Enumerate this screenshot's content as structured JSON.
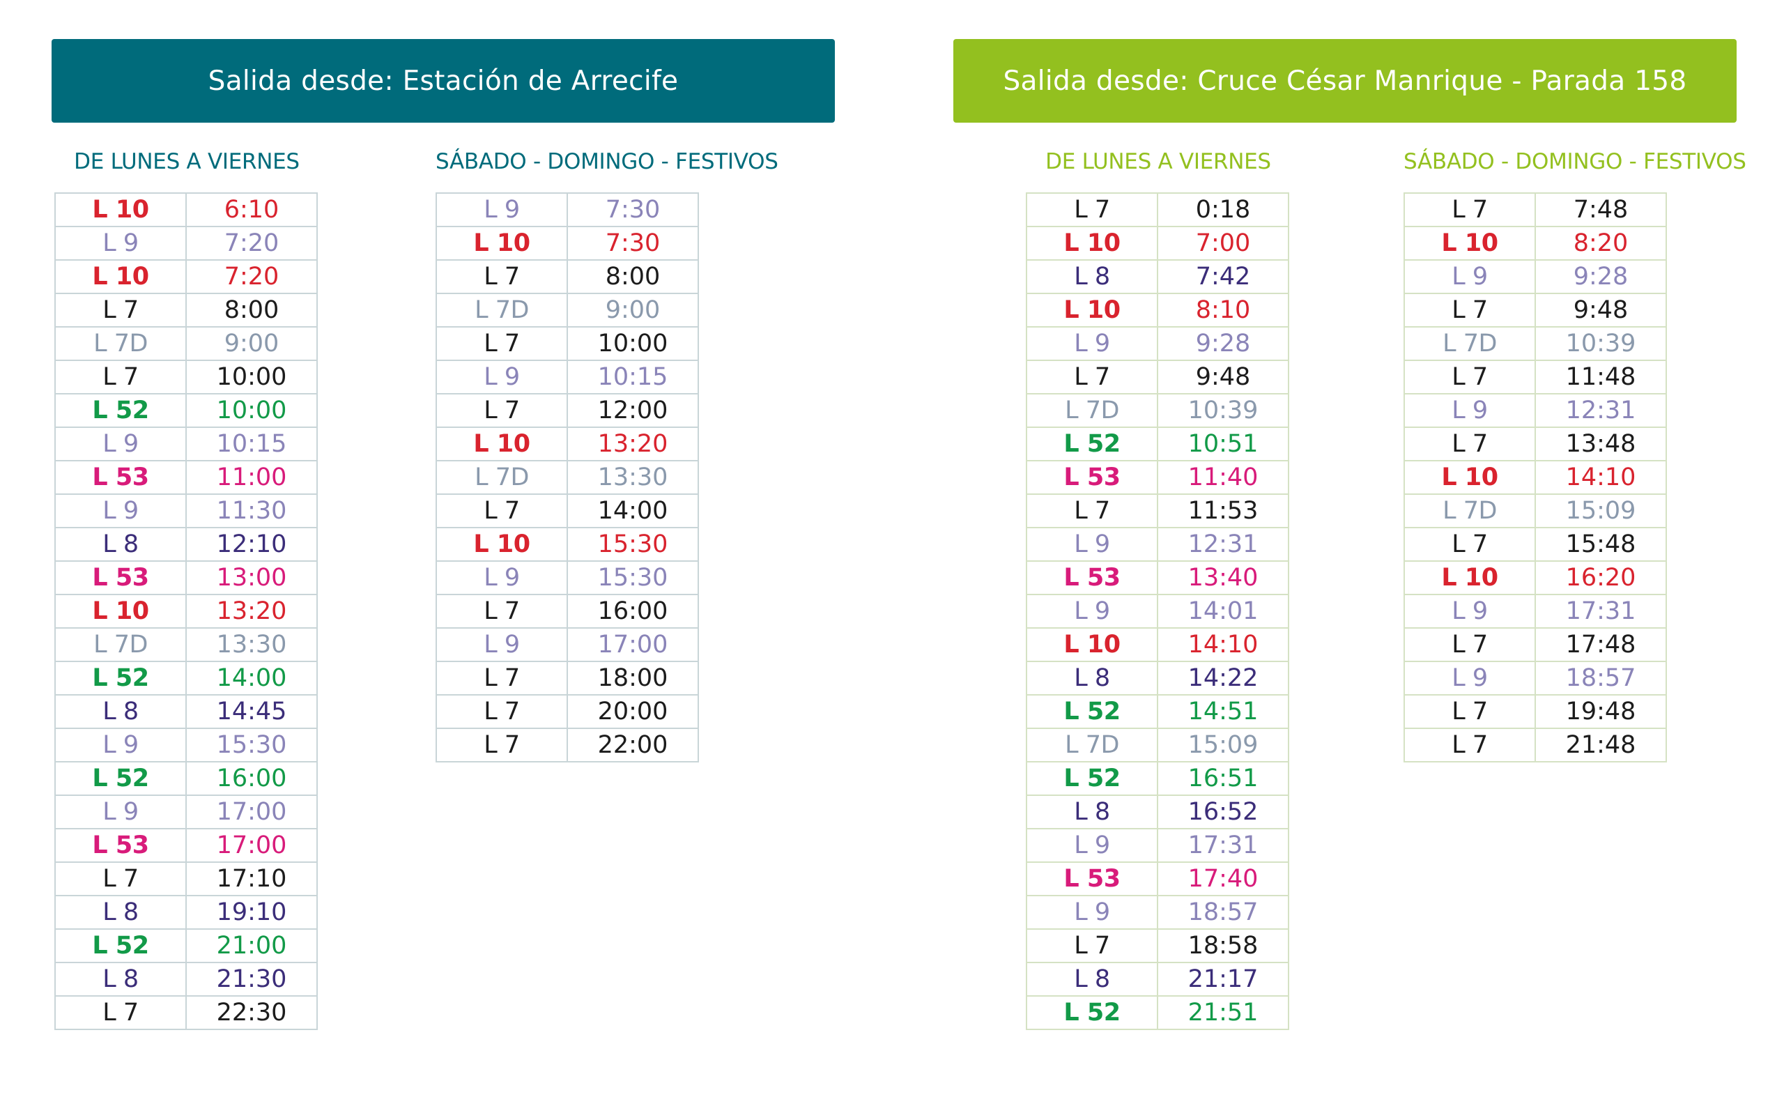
{
  "line_colors": {
    "L 10": "#d9232e",
    "L 9": "#8a84b8",
    "L 7": "#1c1c1c",
    "L 7D": "#8a99ac",
    "L 52": "#129a48",
    "L 53": "#d81b7a",
    "L 8": "#3b2d79"
  },
  "bold_lines": [
    "L 10",
    "L 52",
    "L 53"
  ],
  "sections": [
    {
      "title": "Salida desde: Estación de Arrecife",
      "accent": "#006b7b",
      "schedules": [
        {
          "label": "DE LUNES A VIERNES",
          "rows": [
            [
              "L 10",
              "6:10"
            ],
            [
              "L 9",
              "7:20"
            ],
            [
              "L 10",
              "7:20"
            ],
            [
              "L 7",
              "8:00"
            ],
            [
              "L 7D",
              "9:00"
            ],
            [
              "L 7",
              "10:00"
            ],
            [
              "L 52",
              "10:00"
            ],
            [
              "L 9",
              "10:15"
            ],
            [
              "L 53",
              "11:00"
            ],
            [
              "L 9",
              "11:30"
            ],
            [
              "L 8",
              "12:10"
            ],
            [
              "L 53",
              "13:00"
            ],
            [
              "L 10",
              "13:20"
            ],
            [
              "L 7D",
              "13:30"
            ],
            [
              "L 52",
              "14:00"
            ],
            [
              "L 8",
              "14:45"
            ],
            [
              "L 9",
              "15:30"
            ],
            [
              "L 52",
              "16:00"
            ],
            [
              "L 9",
              "17:00"
            ],
            [
              "L 53",
              "17:00"
            ],
            [
              "L 7",
              "17:10"
            ],
            [
              "L 8",
              "19:10"
            ],
            [
              "L 52",
              "21:00"
            ],
            [
              "L 8",
              "21:30"
            ],
            [
              "L 7",
              "22:30"
            ]
          ]
        },
        {
          "label": "SÁBADO - DOMINGO - FESTIVOS",
          "rows": [
            [
              "L 9",
              "7:30"
            ],
            [
              "L 10",
              "7:30"
            ],
            [
              "L 7",
              "8:00"
            ],
            [
              "L 7D",
              "9:00"
            ],
            [
              "L 7",
              "10:00"
            ],
            [
              "L 9",
              "10:15"
            ],
            [
              "L 7",
              "12:00"
            ],
            [
              "L 10",
              "13:20"
            ],
            [
              "L 7D",
              "13:30"
            ],
            [
              "L 7",
              "14:00"
            ],
            [
              "L 10",
              "15:30"
            ],
            [
              "L 9",
              "15:30"
            ],
            [
              "L 7",
              "16:00"
            ],
            [
              "L 9",
              "17:00"
            ],
            [
              "L 7",
              "18:00"
            ],
            [
              "L 7",
              "20:00"
            ],
            [
              "L 7",
              "22:00"
            ]
          ]
        }
      ]
    },
    {
      "title": "Salida desde: Cruce César Manrique - Parada 158",
      "accent": "#93c01f",
      "schedules": [
        {
          "label": "DE LUNES A VIERNES",
          "rows": [
            [
              "L 7",
              "0:18"
            ],
            [
              "L 10",
              "7:00"
            ],
            [
              "L 8",
              "7:42"
            ],
            [
              "L 10",
              "8:10"
            ],
            [
              "L 9",
              "9:28"
            ],
            [
              "L 7",
              "9:48"
            ],
            [
              "L 7D",
              "10:39"
            ],
            [
              "L 52",
              "10:51"
            ],
            [
              "L 53",
              "11:40"
            ],
            [
              "L 7",
              "11:53"
            ],
            [
              "L 9",
              "12:31"
            ],
            [
              "L 53",
              "13:40"
            ],
            [
              "L 9",
              "14:01"
            ],
            [
              "L 10",
              "14:10"
            ],
            [
              "L 8",
              "14:22"
            ],
            [
              "L 52",
              "14:51"
            ],
            [
              "L 7D",
              "15:09"
            ],
            [
              "L 52",
              "16:51"
            ],
            [
              "L 8",
              "16:52"
            ],
            [
              "L 9",
              "17:31"
            ],
            [
              "L 53",
              "17:40"
            ],
            [
              "L 9",
              "18:57"
            ],
            [
              "L 7",
              "18:58"
            ],
            [
              "L 8",
              "21:17"
            ],
            [
              "L 52",
              "21:51"
            ]
          ]
        },
        {
          "label": "SÁBADO - DOMINGO - FESTIVOS",
          "rows": [
            [
              "L 7",
              "7:48"
            ],
            [
              "L 10",
              "8:20"
            ],
            [
              "L 9",
              "9:28"
            ],
            [
              "L 7",
              "9:48"
            ],
            [
              "L 7D",
              "10:39"
            ],
            [
              "L 7",
              "11:48"
            ],
            [
              "L 9",
              "12:31"
            ],
            [
              "L 7",
              "13:48"
            ],
            [
              "L 10",
              "14:10"
            ],
            [
              "L 7D",
              "15:09"
            ],
            [
              "L 7",
              "15:48"
            ],
            [
              "L 10",
              "16:20"
            ],
            [
              "L 9",
              "17:31"
            ],
            [
              "L 7",
              "17:48"
            ],
            [
              "L 9",
              "18:57"
            ],
            [
              "L 7",
              "19:48"
            ],
            [
              "L 7",
              "21:48"
            ]
          ]
        }
      ]
    }
  ]
}
